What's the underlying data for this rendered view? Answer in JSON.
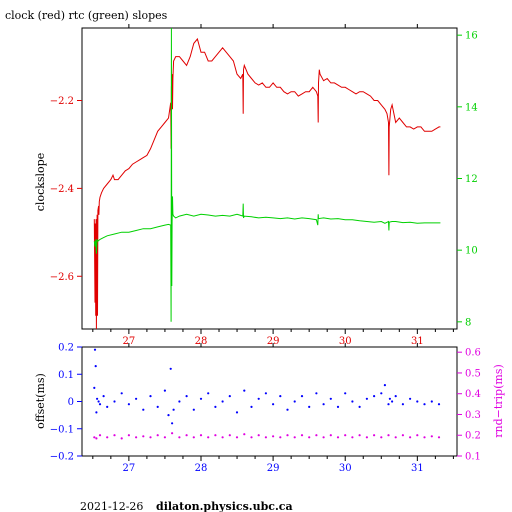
{
  "chart_data": [
    {
      "type": "line",
      "title": "clock (red) rtc (green) slopes",
      "xlabel": "",
      "ylabel": "clockslope",
      "y2label": "",
      "xlim": [
        26.35,
        31.55
      ],
      "ylim": [
        -2.72,
        -2.035
      ],
      "y2lim": [
        7.8,
        16.2
      ],
      "x_ticks": [
        27,
        28,
        29,
        30,
        31
      ],
      "x_tick_labels": [
        "27",
        "28",
        "29",
        "30",
        "31"
      ],
      "y_ticks": [
        -2.2,
        -2.4,
        -2.6
      ],
      "y_tick_labels": [
        "−2.2",
        "−2.4",
        "−2.6"
      ],
      "y2_ticks": [
        8,
        10,
        12,
        14,
        16
      ],
      "y2_tick_labels": [
        "8",
        "10",
        "12",
        "14",
        "16"
      ],
      "colors": {
        "clock": "#e00000",
        "rtc": "#00d000",
        "left_axis": "#e00000",
        "right_axis": "#00d000"
      },
      "series": [
        {
          "axis": "left",
          "color": "#e00000",
          "x": [
            26.52,
            26.53,
            26.535,
            26.54,
            26.545,
            26.55,
            26.56,
            26.565,
            26.57,
            26.58,
            26.585,
            26.59,
            26.6,
            26.62,
            26.65,
            26.7,
            26.75,
            26.78,
            26.8,
            26.85,
            26.9,
            26.95,
            27.0,
            27.05,
            27.1,
            27.15,
            27.2,
            27.25,
            27.3,
            27.35,
            27.4,
            27.45,
            27.5,
            27.55,
            27.58,
            27.585,
            27.59,
            27.6,
            27.605,
            27.61,
            27.62,
            27.65,
            27.7,
            27.75,
            27.8,
            27.85,
            27.9,
            27.95,
            28.0,
            28.05,
            28.1,
            28.15,
            28.2,
            28.25,
            28.3,
            28.35,
            28.4,
            28.45,
            28.5,
            28.55,
            28.58,
            28.585,
            28.59,
            28.6,
            28.65,
            28.7,
            28.75,
            28.8,
            28.85,
            28.9,
            28.95,
            29.0,
            29.05,
            29.1,
            29.15,
            29.2,
            29.25,
            29.3,
            29.35,
            29.4,
            29.45,
            29.5,
            29.55,
            29.6,
            29.62,
            29.625,
            29.63,
            29.64,
            29.65,
            29.7,
            29.75,
            29.8,
            29.85,
            29.9,
            29.95,
            30.0,
            30.05,
            30.1,
            30.15,
            30.2,
            30.25,
            30.3,
            30.35,
            30.4,
            30.45,
            30.5,
            30.55,
            30.58,
            30.6,
            30.605,
            30.61,
            30.63,
            30.65,
            30.7,
            30.75,
            30.8,
            30.85,
            30.9,
            30.95,
            31.0,
            31.05,
            31.1,
            31.15,
            31.2,
            31.25,
            31.3,
            31.32
          ],
          "y": [
            -2.47,
            -2.66,
            -2.48,
            -2.69,
            -2.47,
            -2.72,
            -2.46,
            -2.69,
            -2.45,
            -2.44,
            -2.46,
            -2.43,
            -2.42,
            -2.41,
            -2.4,
            -2.39,
            -2.38,
            -2.37,
            -2.38,
            -2.38,
            -2.37,
            -2.36,
            -2.355,
            -2.345,
            -2.34,
            -2.335,
            -2.33,
            -2.325,
            -2.31,
            -2.29,
            -2.27,
            -2.26,
            -2.25,
            -2.24,
            -2.205,
            -2.31,
            -2.17,
            -2.14,
            -2.22,
            -2.15,
            -2.11,
            -2.1,
            -2.1,
            -2.11,
            -2.12,
            -2.1,
            -2.07,
            -2.06,
            -2.09,
            -2.09,
            -2.11,
            -2.11,
            -2.1,
            -2.09,
            -2.08,
            -2.09,
            -2.1,
            -2.11,
            -2.14,
            -2.15,
            -2.14,
            -2.23,
            -2.13,
            -2.12,
            -2.14,
            -2.15,
            -2.16,
            -2.165,
            -2.16,
            -2.17,
            -2.17,
            -2.16,
            -2.17,
            -2.17,
            -2.18,
            -2.185,
            -2.18,
            -2.18,
            -2.19,
            -2.185,
            -2.18,
            -2.18,
            -2.17,
            -2.18,
            -2.19,
            -2.25,
            -2.16,
            -2.13,
            -2.14,
            -2.155,
            -2.15,
            -2.16,
            -2.16,
            -2.165,
            -2.17,
            -2.17,
            -2.175,
            -2.18,
            -2.185,
            -2.18,
            -2.18,
            -2.185,
            -2.19,
            -2.2,
            -2.2,
            -2.21,
            -2.22,
            -2.23,
            -2.25,
            -2.37,
            -2.26,
            -2.22,
            -2.21,
            -2.25,
            -2.24,
            -2.25,
            -2.26,
            -2.26,
            -2.265,
            -2.26,
            -2.26,
            -2.27,
            -2.27,
            -2.27,
            -2.265,
            -2.26,
            -2.26
          ]
        },
        {
          "axis": "right",
          "color": "#00d000",
          "x": [
            26.52,
            26.53,
            26.54,
            26.55,
            26.56,
            26.57,
            26.6,
            26.65,
            26.7,
            26.8,
            26.9,
            27.0,
            27.1,
            27.2,
            27.3,
            27.4,
            27.5,
            27.55,
            27.58,
            27.585,
            27.59,
            27.595,
            27.6,
            27.605,
            27.61,
            27.62,
            27.65,
            27.7,
            27.8,
            27.9,
            28.0,
            28.1,
            28.2,
            28.3,
            28.4,
            28.5,
            28.55,
            28.58,
            28.585,
            28.59,
            28.6,
            28.7,
            28.8,
            28.9,
            29.0,
            29.1,
            29.2,
            29.3,
            29.4,
            29.5,
            29.6,
            29.62,
            29.625,
            29.63,
            29.7,
            29.8,
            29.9,
            30.0,
            30.1,
            30.2,
            30.3,
            30.4,
            30.5,
            30.55,
            30.6,
            30.605,
            30.61,
            30.65,
            30.7,
            30.8,
            30.9,
            31.0,
            31.1,
            31.2,
            31.3,
            31.32
          ],
          "y": [
            10.25,
            10.1,
            10.3,
            9.9,
            10.3,
            10.25,
            10.3,
            10.35,
            10.4,
            10.45,
            10.5,
            10.5,
            10.55,
            10.6,
            10.6,
            10.65,
            10.7,
            10.72,
            10.7,
            8.0,
            16.2,
            9.0,
            10.8,
            11.5,
            11.0,
            10.95,
            10.9,
            10.95,
            11.0,
            10.95,
            11.0,
            10.98,
            10.95,
            10.97,
            10.95,
            11.0,
            10.97,
            10.95,
            11.3,
            10.9,
            10.95,
            10.93,
            10.9,
            10.92,
            10.9,
            10.88,
            10.9,
            10.87,
            10.9,
            10.88,
            10.85,
            10.7,
            11.0,
            10.88,
            10.9,
            10.87,
            10.88,
            10.85,
            10.85,
            10.82,
            10.8,
            10.78,
            10.8,
            10.75,
            10.8,
            10.55,
            10.78,
            10.8,
            10.8,
            10.77,
            10.78,
            10.75,
            10.76,
            10.76,
            10.76,
            10.76
          ]
        }
      ]
    },
    {
      "type": "scatter",
      "title": "",
      "xlabel": "",
      "ylabel": "offset(ms)",
      "y2label": "rnd−trip(ms)",
      "xlim": [
        26.35,
        31.55
      ],
      "ylim": [
        -0.2,
        0.2
      ],
      "y2lim": [
        0.1,
        0.625
      ],
      "x_ticks": [
        27,
        28,
        29,
        30,
        31
      ],
      "x_tick_labels": [
        "27",
        "28",
        "29",
        "30",
        "31"
      ],
      "y_ticks": [
        0.2,
        0.1,
        0,
        -0.1,
        -0.2
      ],
      "y_tick_labels": [
        "0.2",
        "0.1",
        "0",
        "−0.1",
        "−0.2"
      ],
      "y2_ticks": [
        0.1,
        0.2,
        0.3,
        0.4,
        0.5,
        0.6
      ],
      "y2_tick_labels": [
        "0.1",
        "0.2",
        "0.3",
        "0.4",
        "0.5",
        "0.6"
      ],
      "colors": {
        "offset": "#0000ff",
        "rndtrip": "#e000e0",
        "left_axis": "#0000ff",
        "right_axis": "#e000e0"
      },
      "series": [
        {
          "axis": "left",
          "color": "#0000ff",
          "x": [
            26.52,
            26.53,
            26.54,
            26.55,
            26.56,
            26.58,
            26.6,
            26.65,
            26.7,
            26.8,
            26.9,
            27.0,
            27.1,
            27.2,
            27.3,
            27.4,
            27.5,
            27.55,
            27.58,
            27.6,
            27.62,
            27.7,
            27.8,
            27.9,
            28.0,
            28.1,
            28.2,
            28.3,
            28.4,
            28.5,
            28.6,
            28.7,
            28.8,
            28.9,
            29.0,
            29.1,
            29.2,
            29.3,
            29.4,
            29.5,
            29.6,
            29.7,
            29.8,
            29.9,
            30.0,
            30.1,
            30.2,
            30.3,
            30.4,
            30.5,
            30.55,
            30.6,
            30.62,
            30.65,
            30.7,
            30.8,
            30.9,
            31.0,
            31.1,
            31.2,
            31.3
          ],
          "y": [
            0.05,
            0.19,
            0.13,
            -0.04,
            0.01,
            0.0,
            -0.01,
            0.02,
            -0.02,
            0.0,
            0.03,
            -0.01,
            0.01,
            -0.03,
            0.02,
            -0.02,
            0.04,
            -0.05,
            0.12,
            -0.08,
            -0.03,
            0.0,
            0.02,
            -0.03,
            0.01,
            0.03,
            -0.02,
            0.0,
            0.02,
            -0.04,
            0.04,
            -0.02,
            0.01,
            0.03,
            -0.01,
            0.02,
            -0.03,
            0.0,
            0.02,
            -0.02,
            0.03,
            -0.01,
            0.01,
            -0.02,
            0.03,
            0.0,
            -0.02,
            0.01,
            0.02,
            0.03,
            0.06,
            -0.01,
            0.01,
            0.0,
            0.02,
            -0.01,
            0.01,
            0.0,
            -0.01,
            0.0,
            -0.01
          ]
        },
        {
          "axis": "right",
          "color": "#e000e0",
          "x": [
            26.52,
            26.55,
            26.6,
            26.7,
            26.8,
            26.9,
            27.0,
            27.1,
            27.2,
            27.3,
            27.4,
            27.5,
            27.6,
            27.7,
            27.8,
            27.9,
            28.0,
            28.1,
            28.2,
            28.3,
            28.4,
            28.5,
            28.6,
            28.7,
            28.8,
            28.9,
            29.0,
            29.1,
            29.2,
            29.3,
            29.4,
            29.5,
            29.6,
            29.7,
            29.8,
            29.9,
            30.0,
            30.1,
            30.2,
            30.3,
            30.4,
            30.5,
            30.6,
            30.7,
            30.8,
            30.9,
            31.0,
            31.1,
            31.2,
            31.3
          ],
          "y": [
            0.19,
            0.185,
            0.2,
            0.19,
            0.2,
            0.185,
            0.2,
            0.19,
            0.195,
            0.19,
            0.2,
            0.19,
            0.21,
            0.19,
            0.2,
            0.19,
            0.2,
            0.19,
            0.2,
            0.19,
            0.2,
            0.19,
            0.205,
            0.19,
            0.2,
            0.19,
            0.195,
            0.19,
            0.2,
            0.19,
            0.2,
            0.19,
            0.2,
            0.19,
            0.2,
            0.19,
            0.2,
            0.19,
            0.2,
            0.19,
            0.2,
            0.19,
            0.2,
            0.19,
            0.2,
            0.19,
            0.2,
            0.19,
            0.195,
            0.19
          ]
        }
      ]
    }
  ],
  "footer": {
    "date": "2021-12-26",
    "host": "dilaton.physics.ubc.ca"
  }
}
